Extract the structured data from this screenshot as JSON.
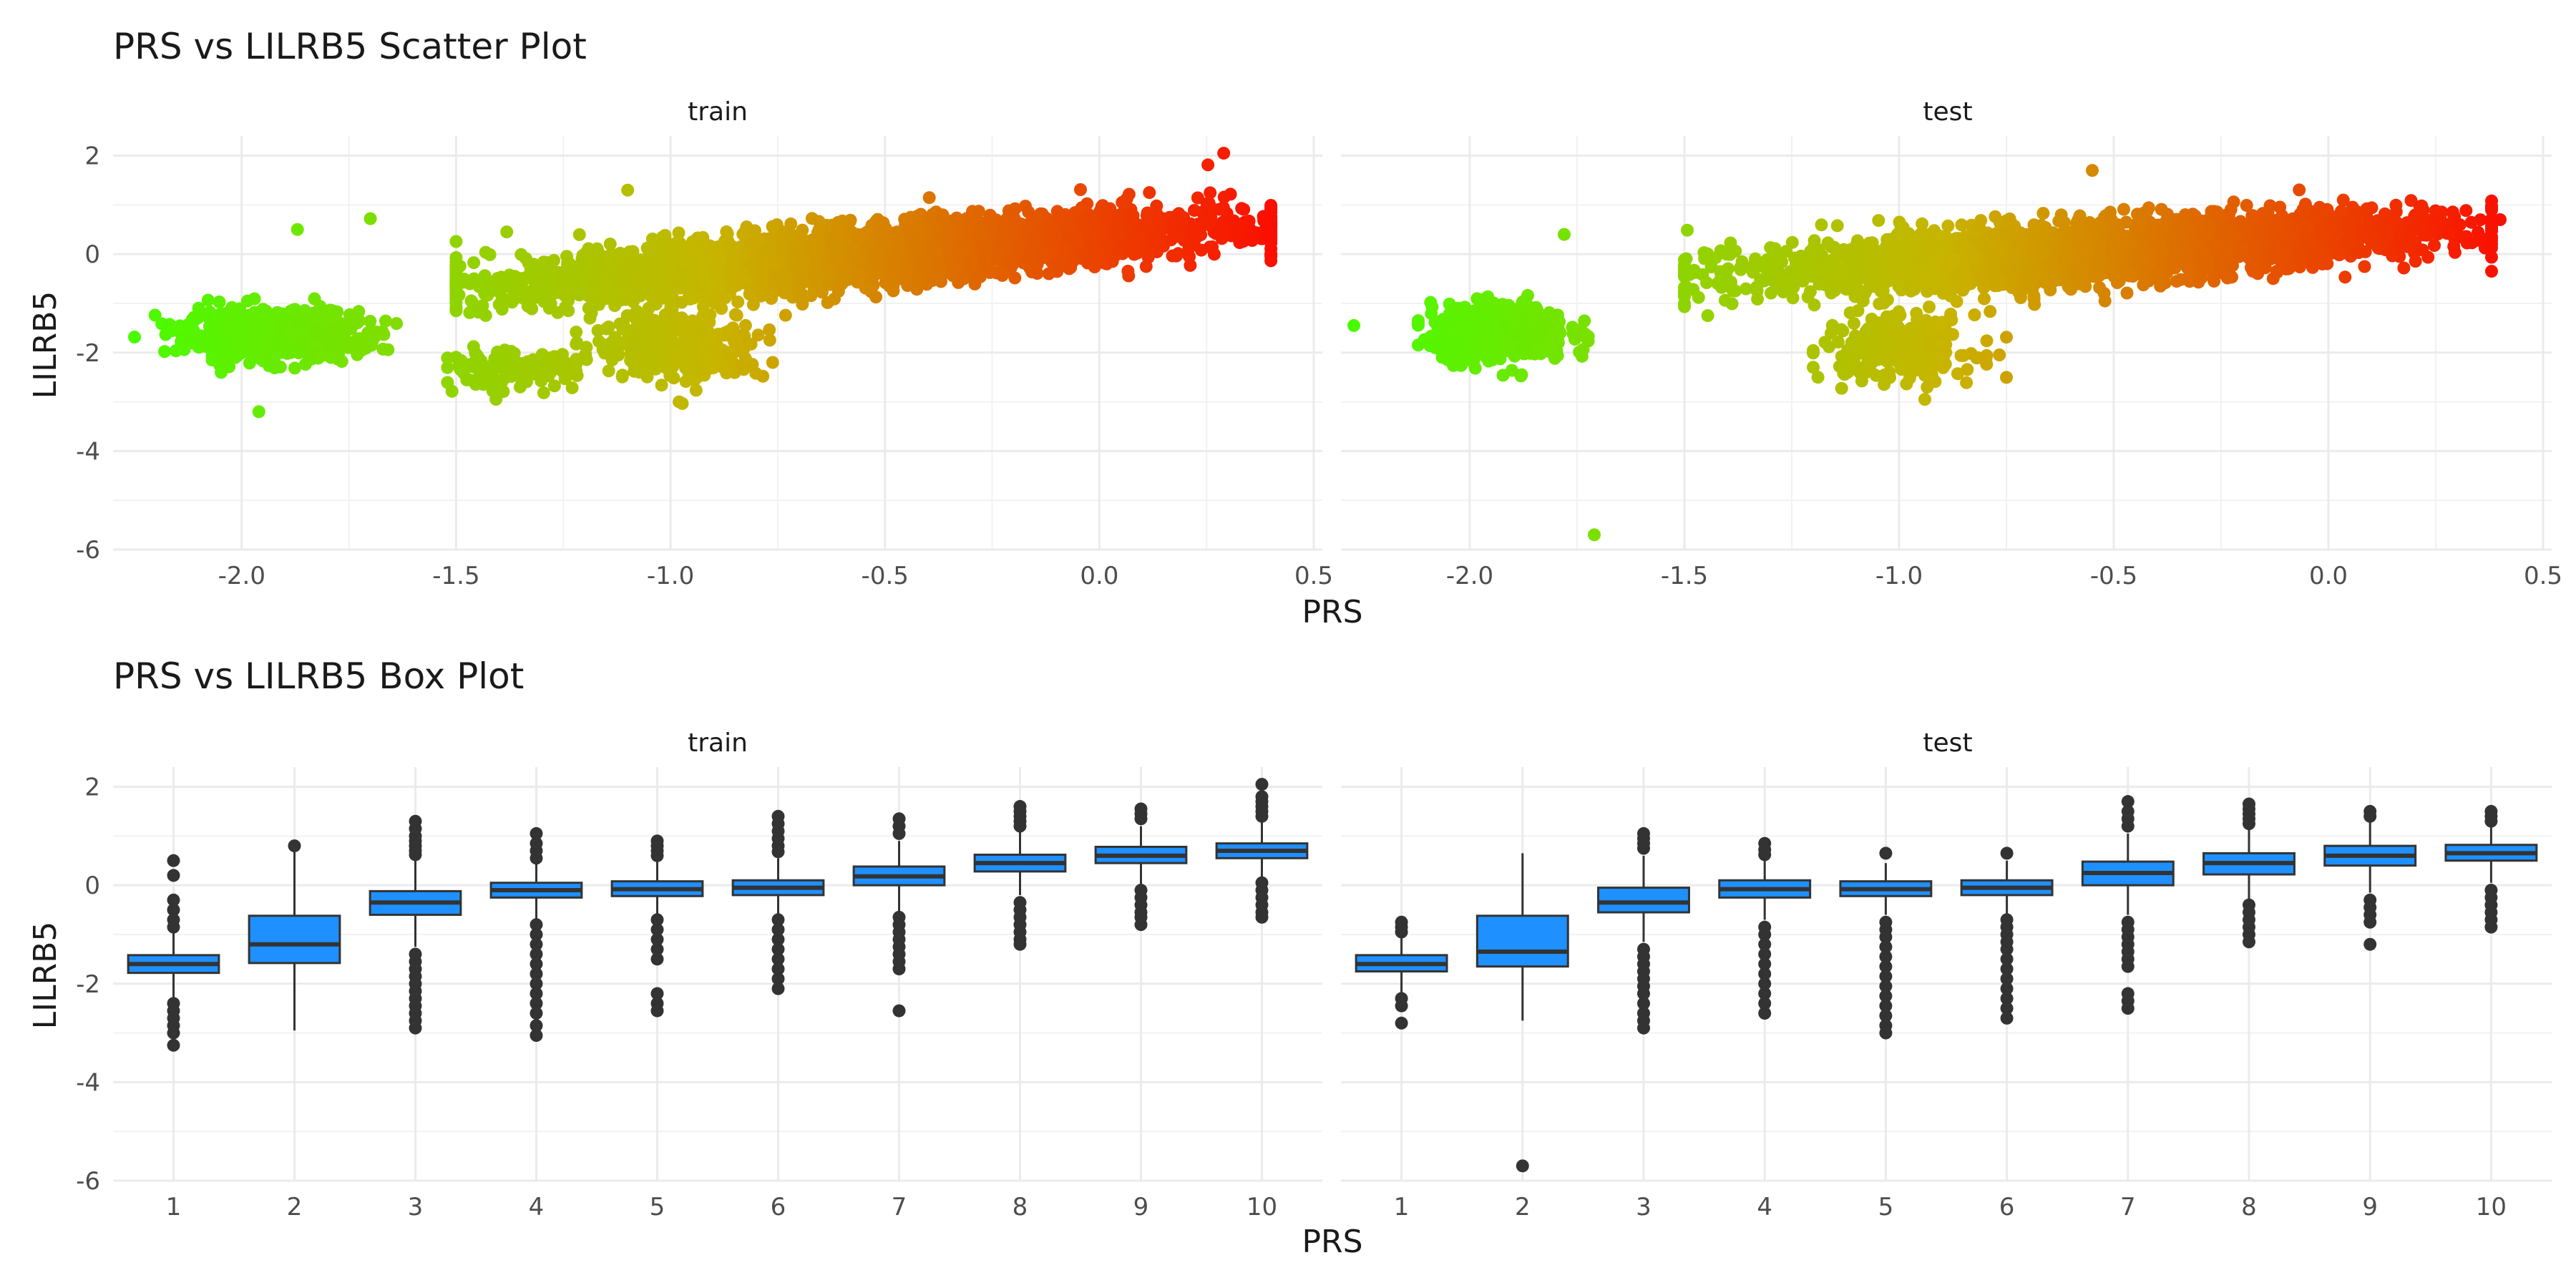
{
  "chart_data": [
    {
      "type": "scatter",
      "title": "PRS vs LILRB5 Scatter Plot",
      "xlabel": "PRS",
      "ylabel": "LILRB5",
      "xlim": [
        -2.3,
        0.52
      ],
      "ylim": [
        -6.0,
        2.4
      ],
      "xticks": [
        -2.0,
        -1.5,
        -1.0,
        -0.5,
        0.0,
        0.5
      ],
      "xtick_labels": [
        "-2.0",
        "-1.5",
        "-1.0",
        "-0.5",
        "0.0",
        "0.5"
      ],
      "yticks": [
        -6,
        -4,
        -2,
        0,
        2
      ],
      "ytick_labels": [
        "-6",
        "-4",
        "-2",
        "0",
        "2"
      ],
      "grid": true,
      "color_scale": {
        "low": "#44FF00",
        "mid": "#C8B400",
        "high": "#FF0000"
      },
      "panels": [
        {
          "name": "train",
          "clusters": [
            {
              "x_mean": -1.93,
              "x_sd": 0.1,
              "y_sd": 0.25,
              "n": 650,
              "slope": 0.0,
              "intercept": -1.65,
              "x_range": [
                -2.25,
                -1.58
              ]
            },
            {
              "x_mean": -1.38,
              "x_sd": 0.08,
              "y_sd": 0.18,
              "n": 120,
              "slope": 0.0,
              "intercept": -2.35,
              "x_range": [
                -1.52,
                -1.22
              ]
            },
            {
              "x_mean": -0.98,
              "x_sd": 0.1,
              "y_sd": 0.35,
              "n": 320,
              "slope": 0.0,
              "intercept": -1.85,
              "x_range": [
                -1.22,
                -0.72
              ]
            },
            {
              "x_mean": -0.55,
              "x_sd": 0.42,
              "y_sd": 0.3,
              "n": 3000,
              "slope": 0.7,
              "intercept": 0.35,
              "x_range": [
                -1.5,
                0.4
              ]
            }
          ],
          "highlights": [
            {
              "x": 0.29,
              "y": 2.05
            },
            {
              "x": -1.87,
              "y": 0.5
            },
            {
              "x": -1.7,
              "y": 0.72
            },
            {
              "x": -1.96,
              "y": -3.2
            },
            {
              "x": -1.1,
              "y": 1.3
            },
            {
              "x": -0.98,
              "y": -3.0
            }
          ]
        },
        {
          "name": "test",
          "clusters": [
            {
              "x_mean": -1.93,
              "x_sd": 0.08,
              "y_sd": 0.28,
              "n": 500,
              "slope": 0.0,
              "intercept": -1.6,
              "x_range": [
                -2.12,
                -1.6
              ]
            },
            {
              "x_mean": -1.0,
              "x_sd": 0.09,
              "y_sd": 0.35,
              "n": 250,
              "slope": 0.0,
              "intercept": -1.9,
              "x_range": [
                -1.2,
                -0.75
              ]
            },
            {
              "x_mean": -0.55,
              "x_sd": 0.4,
              "y_sd": 0.3,
              "n": 2600,
              "slope": 0.55,
              "intercept": 0.35,
              "x_range": [
                -1.5,
                0.38
              ]
            }
          ],
          "highlights": [
            {
              "x": -1.71,
              "y": -5.7
            },
            {
              "x": -2.27,
              "y": -1.45
            },
            {
              "x": -1.78,
              "y": 0.4
            },
            {
              "x": -0.94,
              "y": -2.95
            },
            {
              "x": -0.55,
              "y": 1.7
            },
            {
              "x": 0.4,
              "y": 0.7
            }
          ]
        }
      ]
    },
    {
      "type": "box",
      "title": "PRS vs LILRB5 Box Plot",
      "xlabel": "PRS",
      "ylabel": "LILRB5",
      "categories": [
        "1",
        "2",
        "3",
        "4",
        "5",
        "6",
        "7",
        "8",
        "9",
        "10"
      ],
      "ylim": [
        -6.0,
        2.4
      ],
      "yticks": [
        -6,
        -4,
        -2,
        0,
        2
      ],
      "ytick_labels": [
        "-6",
        "-4",
        "-2",
        "0",
        "2"
      ],
      "grid": true,
      "box_fill": "#1E90FF",
      "outline_color": "#333333",
      "panels": [
        {
          "name": "train",
          "boxes": [
            {
              "q1": -1.78,
              "median": -1.6,
              "q3": -1.42,
              "whisker_low": -2.3,
              "whisker_high": -0.9,
              "outliers": [
                0.5,
                0.2,
                -0.3,
                -0.5,
                -0.7,
                -0.85,
                -2.4,
                -2.55,
                -2.7,
                -2.85,
                -3.0,
                -3.25
              ]
            },
            {
              "q1": -1.58,
              "median": -1.2,
              "q3": -0.62,
              "whisker_low": -2.95,
              "whisker_high": 0.8,
              "outliers": [
                0.8
              ]
            },
            {
              "q1": -0.6,
              "median": -0.35,
              "q3": -0.12,
              "whisker_low": -1.25,
              "whisker_high": 0.55,
              "outliers": [
                1.3,
                1.15,
                1.0,
                0.9,
                0.8,
                0.7,
                0.62,
                -1.4,
                -1.55,
                -1.7,
                -1.85,
                -2.0,
                -2.15,
                -2.3,
                -2.45,
                -2.6,
                -2.75,
                -2.9
              ]
            },
            {
              "q1": -0.25,
              "median": -0.1,
              "q3": 0.05,
              "whisker_low": -0.7,
              "whisker_high": 0.45,
              "outliers": [
                1.05,
                0.85,
                0.7,
                0.55,
                -0.8,
                -1.0,
                -1.2,
                -1.4,
                -1.6,
                -1.8,
                -2.0,
                -2.2,
                -2.4,
                -2.6,
                -2.85,
                -3.05
              ]
            },
            {
              "q1": -0.22,
              "median": -0.08,
              "q3": 0.08,
              "whisker_low": -0.6,
              "whisker_high": 0.5,
              "outliers": [
                0.9,
                0.8,
                0.7,
                0.6,
                -0.7,
                -0.9,
                -1.1,
                -1.3,
                -1.5,
                -2.2,
                -2.4,
                -2.55
              ]
            },
            {
              "q1": -0.2,
              "median": -0.05,
              "q3": 0.1,
              "whisker_low": -0.6,
              "whisker_high": 0.55,
              "outliers": [
                1.4,
                1.25,
                1.1,
                0.95,
                0.8,
                0.68,
                -0.7,
                -0.9,
                -1.1,
                -1.3,
                -1.5,
                -1.7,
                -1.9,
                -2.1
              ]
            },
            {
              "q1": 0.0,
              "median": 0.18,
              "q3": 0.38,
              "whisker_low": -0.55,
              "whisker_high": 0.9,
              "outliers": [
                1.35,
                1.2,
                1.05,
                -0.65,
                -0.8,
                -0.95,
                -1.1,
                -1.25,
                -1.4,
                -1.55,
                -1.7,
                -2.55
              ]
            },
            {
              "q1": 0.28,
              "median": 0.45,
              "q3": 0.62,
              "whisker_low": -0.2,
              "whisker_high": 1.1,
              "outliers": [
                1.6,
                1.5,
                1.4,
                1.3,
                1.2,
                -0.35,
                -0.5,
                -0.65,
                -0.8,
                -0.95,
                -1.1,
                -1.2
              ]
            },
            {
              "q1": 0.45,
              "median": 0.6,
              "q3": 0.78,
              "whisker_low": 0.0,
              "whisker_high": 1.2,
              "outliers": [
                1.55,
                1.45,
                1.35,
                -0.1,
                -0.25,
                -0.4,
                -0.55,
                -0.65,
                -0.8
              ]
            },
            {
              "q1": 0.55,
              "median": 0.7,
              "q3": 0.85,
              "whisker_low": 0.15,
              "whisker_high": 1.3,
              "outliers": [
                2.05,
                1.8,
                1.7,
                1.6,
                1.5,
                1.4,
                0.05,
                -0.1,
                -0.25,
                -0.4,
                -0.55,
                -0.65
              ]
            }
          ]
        },
        {
          "name": "test",
          "boxes": [
            {
              "q1": -1.75,
              "median": -1.6,
              "q3": -1.42,
              "whisker_low": -2.2,
              "whisker_high": -0.95,
              "outliers": [
                -0.75,
                -0.85,
                -0.95,
                -2.3,
                -2.45,
                -2.8
              ]
            },
            {
              "q1": -1.65,
              "median": -1.35,
              "q3": -0.62,
              "whisker_low": -2.75,
              "whisker_high": 0.65,
              "outliers": [
                -5.7
              ]
            },
            {
              "q1": -0.55,
              "median": -0.35,
              "q3": -0.05,
              "whisker_low": -1.15,
              "whisker_high": 0.6,
              "outliers": [
                1.05,
                0.95,
                0.85,
                0.75,
                -1.3,
                -1.45,
                -1.6,
                -1.75,
                -1.9,
                -2.05,
                -2.2,
                -2.4,
                -2.6,
                -2.75,
                -2.9
              ]
            },
            {
              "q1": -0.25,
              "median": -0.08,
              "q3": 0.1,
              "whisker_low": -0.7,
              "whisker_high": 0.5,
              "outliers": [
                0.85,
                0.72,
                0.62,
                -0.85,
                -1.0,
                -1.2,
                -1.4,
                -1.6,
                -1.8,
                -2.0,
                -2.2,
                -2.4,
                -2.6
              ]
            },
            {
              "q1": -0.22,
              "median": -0.08,
              "q3": 0.08,
              "whisker_low": -0.6,
              "whisker_high": 0.45,
              "outliers": [
                0.65,
                -0.75,
                -0.9,
                -1.05,
                -1.25,
                -1.45,
                -1.65,
                -1.85,
                -2.05,
                -2.25,
                -2.45,
                -2.65,
                -2.85,
                -3.0
              ]
            },
            {
              "q1": -0.2,
              "median": -0.05,
              "q3": 0.1,
              "whisker_low": -0.6,
              "whisker_high": 0.5,
              "outliers": [
                0.65,
                -0.7,
                -0.85,
                -1.0,
                -1.15,
                -1.3,
                -1.5,
                -1.7,
                -1.9,
                -2.1,
                -2.3,
                -2.5,
                -2.7
              ]
            },
            {
              "q1": 0.0,
              "median": 0.25,
              "q3": 0.48,
              "whisker_low": -0.6,
              "whisker_high": 1.05,
              "outliers": [
                1.7,
                1.5,
                1.35,
                1.2,
                -0.75,
                -0.9,
                -1.05,
                -1.2,
                -1.35,
                -1.5,
                -1.65,
                -2.2,
                -2.35,
                -2.5
              ]
            },
            {
              "q1": 0.22,
              "median": 0.45,
              "q3": 0.65,
              "whisker_low": -0.3,
              "whisker_high": 1.15,
              "outliers": [
                1.65,
                1.55,
                1.45,
                1.35,
                1.25,
                -0.4,
                -0.55,
                -0.7,
                -0.85,
                -1.0,
                -1.15
              ]
            },
            {
              "q1": 0.4,
              "median": 0.6,
              "q3": 0.8,
              "whisker_low": -0.15,
              "whisker_high": 1.3,
              "outliers": [
                1.5,
                1.4,
                -0.3,
                -0.45,
                -0.6,
                -0.75,
                -1.2
              ]
            },
            {
              "q1": 0.5,
              "median": 0.65,
              "q3": 0.82,
              "whisker_low": 0.05,
              "whisker_high": 1.25,
              "outliers": [
                1.5,
                1.4,
                1.3,
                -0.1,
                -0.25,
                -0.4,
                -0.55,
                -0.7,
                -0.85
              ]
            }
          ]
        }
      ]
    }
  ]
}
